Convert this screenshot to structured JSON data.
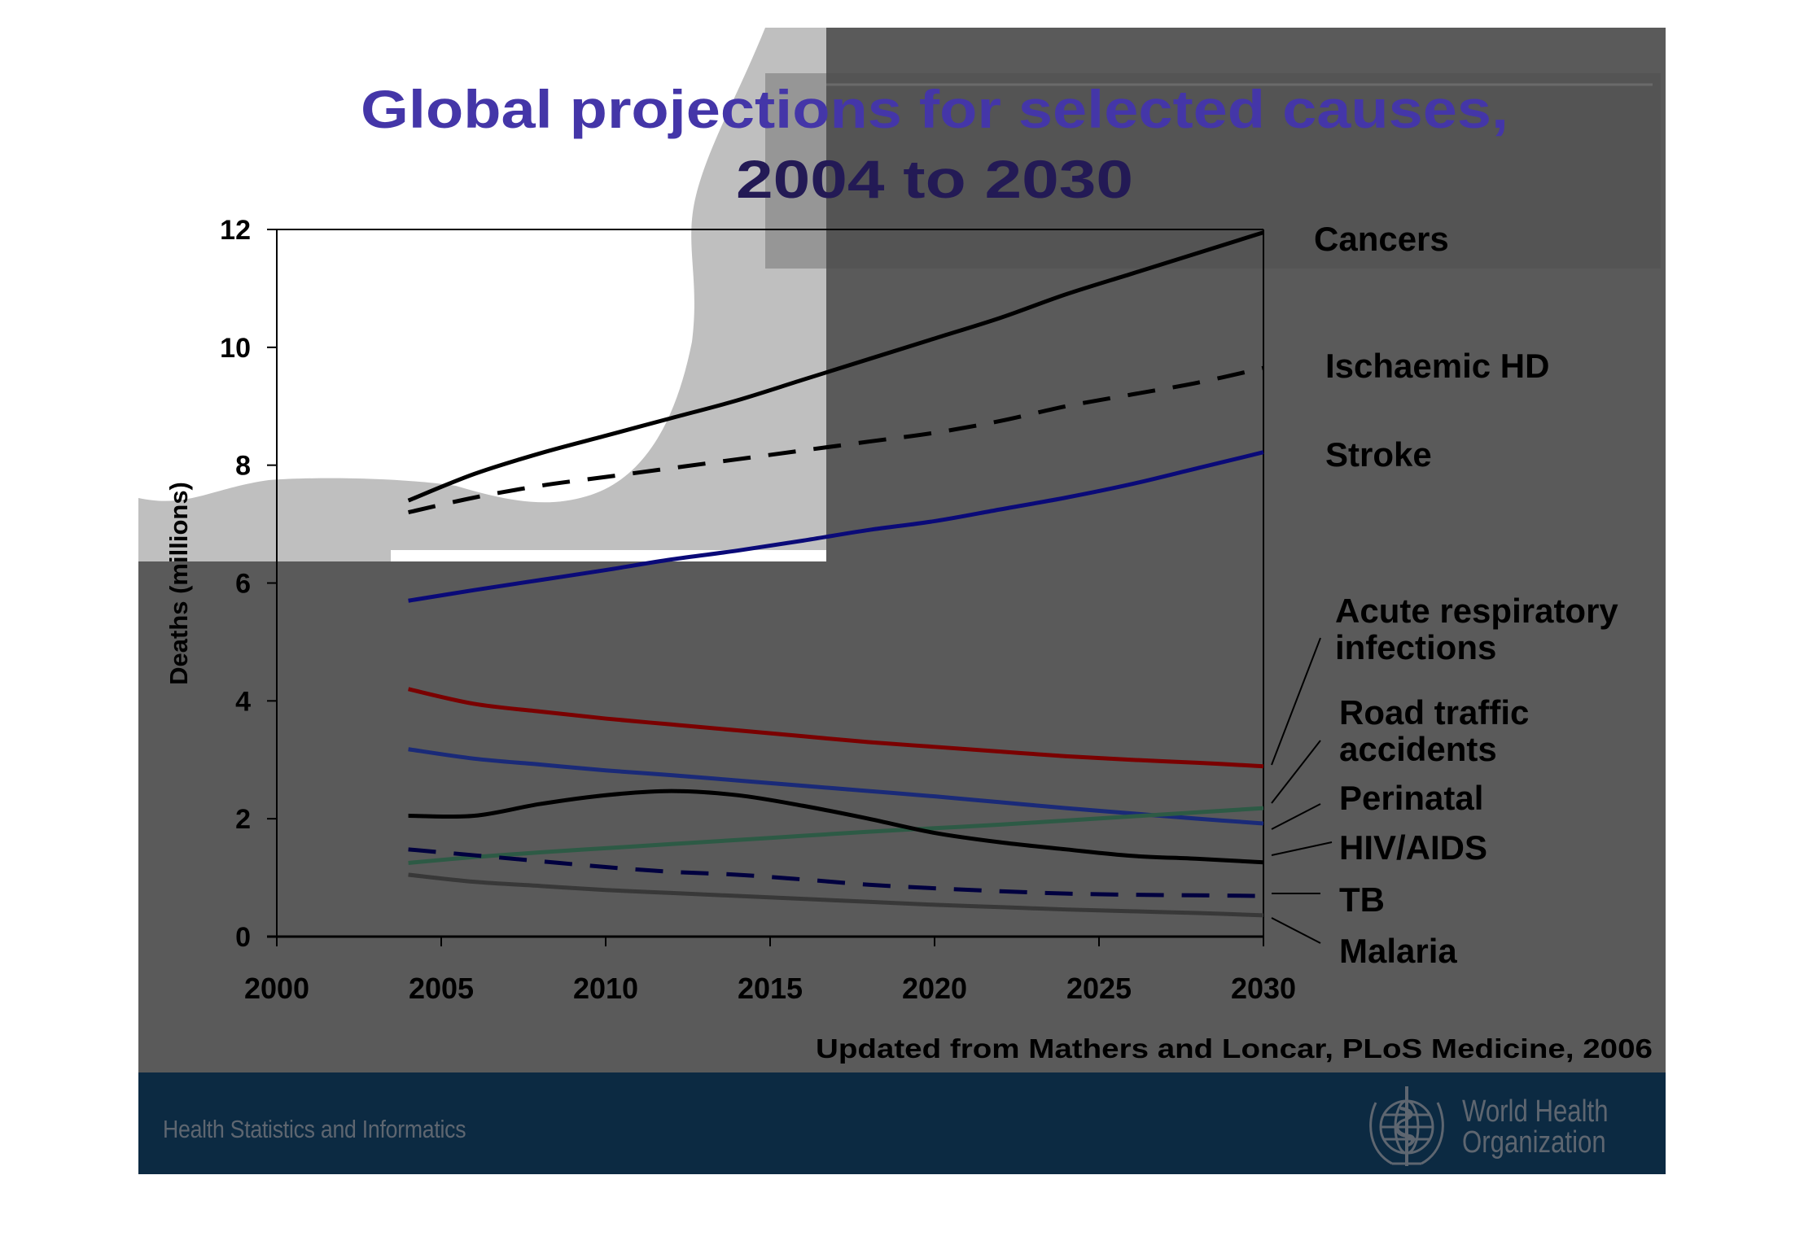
{
  "slide": {
    "title_line1": "Global projections for selected causes,",
    "title_line2": "2004 to 2030",
    "source_note": "Updated from Mathers and Loncar, PLoS Medicine, 2006",
    "footer_left": "Health Statistics and Informatics",
    "footer_logo_line1": "World Health",
    "footer_logo_line2": "Organization",
    "logo_icon": "who-emblem-icon",
    "colors": {
      "title_blue": "#4436a8",
      "title_dark": "#231a55",
      "slide_dark": "#5a5a5a",
      "slide_light": "#bfbfbf",
      "footer_band": "#0c2a42",
      "footer_text": "#5e6670"
    }
  },
  "chart_data": {
    "type": "line",
    "title": "Global projections for selected causes, 2004 to 2030",
    "xlabel": "",
    "ylabel": "Deaths (millions)",
    "xlim": [
      2000,
      2030
    ],
    "ylim": [
      0,
      12
    ],
    "xticks": [
      2000,
      2005,
      2010,
      2015,
      2020,
      2025,
      2030
    ],
    "xtick_labels": [
      "2000",
      "2005",
      "2010",
      "2015",
      "2020",
      "2025",
      "2030"
    ],
    "yticks": [
      0,
      2,
      4,
      6,
      8,
      10,
      12
    ],
    "ytick_labels": [
      "0",
      "2",
      "4",
      "6",
      "8",
      "10",
      "12"
    ],
    "grid": false,
    "legend": "direct labels right of plot",
    "x": [
      2004,
      2006,
      2008,
      2010,
      2012,
      2014,
      2016,
      2018,
      2020,
      2022,
      2024,
      2026,
      2028,
      2030
    ],
    "series": [
      {
        "name": "Cancers",
        "label_lines": [
          "Cancers"
        ],
        "color": "#000000",
        "dash": "solid",
        "values": [
          7.4,
          7.85,
          8.2,
          8.5,
          8.8,
          9.1,
          9.45,
          9.8,
          10.15,
          10.5,
          10.9,
          11.25,
          11.6,
          11.95
        ]
      },
      {
        "name": "Ischaemic HD",
        "label_lines": [
          "Ischaemic HD"
        ],
        "color": "#000000",
        "dash": "dashed",
        "values": [
          7.2,
          7.45,
          7.65,
          7.8,
          7.95,
          8.1,
          8.25,
          8.4,
          8.55,
          8.75,
          9.0,
          9.2,
          9.4,
          9.65
        ]
      },
      {
        "name": "Stroke",
        "label_lines": [
          "Stroke"
        ],
        "color": "#0a0a78",
        "dash": "solid",
        "values": [
          5.7,
          5.88,
          6.05,
          6.22,
          6.4,
          6.55,
          6.72,
          6.9,
          7.05,
          7.25,
          7.45,
          7.68,
          7.95,
          8.22
        ]
      },
      {
        "name": "Acute respiratory infections",
        "label_lines": [
          "Acute respiratory",
          "infections"
        ],
        "color": "#7a0000",
        "dash": "solid",
        "values": [
          4.2,
          3.95,
          3.82,
          3.7,
          3.6,
          3.5,
          3.4,
          3.3,
          3.22,
          3.14,
          3.06,
          3.0,
          2.95,
          2.89
        ]
      },
      {
        "name": "Road traffic accidents",
        "label_lines": [
          "Road traffic",
          "accidents"
        ],
        "color": "#1a2a78",
        "dash": "solid",
        "values": [
          3.18,
          3.02,
          2.92,
          2.82,
          2.74,
          2.65,
          2.56,
          2.47,
          2.38,
          2.28,
          2.18,
          2.09,
          2.0,
          1.92
        ]
      },
      {
        "name": "Perinatal",
        "label_lines": [
          "Perinatal"
        ],
        "color": "#2d5a45",
        "dash": "solid",
        "values": [
          1.25,
          1.35,
          1.43,
          1.5,
          1.57,
          1.64,
          1.71,
          1.78,
          1.84,
          1.9,
          1.97,
          2.04,
          2.11,
          2.18
        ]
      },
      {
        "name": "HIV/AIDS",
        "label_lines": [
          "HIV/AIDS"
        ],
        "color": "#000000",
        "dash": "solid",
        "values": [
          2.05,
          2.05,
          2.25,
          2.4,
          2.47,
          2.4,
          2.22,
          2.0,
          1.76,
          1.6,
          1.48,
          1.37,
          1.32,
          1.26
        ]
      },
      {
        "name": "TB",
        "label_lines": [
          "TB"
        ],
        "color": "#00003f",
        "dash": "dashed",
        "values": [
          1.48,
          1.38,
          1.28,
          1.18,
          1.1,
          1.05,
          0.97,
          0.88,
          0.82,
          0.77,
          0.73,
          0.71,
          0.7,
          0.69
        ]
      },
      {
        "name": "Malaria",
        "label_lines": [
          "Malaria"
        ],
        "color": "#383838",
        "dash": "solid",
        "values": [
          1.05,
          0.93,
          0.86,
          0.79,
          0.74,
          0.69,
          0.64,
          0.59,
          0.54,
          0.5,
          0.46,
          0.43,
          0.4,
          0.36
        ]
      }
    ]
  }
}
